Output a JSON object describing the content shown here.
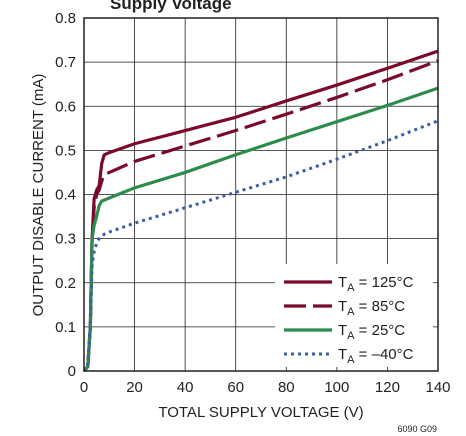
{
  "chart_data": {
    "type": "line",
    "title_fragment": "Supply Voltage",
    "xlabel": "TOTAL SUPPLY VOLTAGE (V)",
    "ylabel": "OUTPUT DISABLE CURRENT (mA)",
    "xlim": [
      0,
      140
    ],
    "ylim": [
      0,
      0.8
    ],
    "x_ticks": [
      "0",
      "20",
      "40",
      "60",
      "80",
      "100",
      "120",
      "140"
    ],
    "y_ticks": [
      "0",
      "0.1",
      "0.2",
      "0.3",
      "0.4",
      "0.5",
      "0.6",
      "0.7",
      "0.8"
    ],
    "grid": true,
    "legend_position": "bottom-right",
    "figure_id": "6090 G09",
    "series": [
      {
        "name_main": "T",
        "name_sub": "A",
        "name_rest": " = 125°C",
        "color": "#7a0a2a",
        "dash": "solid",
        "points": [
          [
            0,
            0
          ],
          [
            1.5,
            0.01
          ],
          [
            2.5,
            0.1
          ],
          [
            3.2,
            0.3
          ],
          [
            4,
            0.39
          ],
          [
            5,
            0.41
          ],
          [
            6,
            0.42
          ],
          [
            7,
            0.47
          ],
          [
            8,
            0.49
          ],
          [
            10,
            0.495
          ],
          [
            20,
            0.515
          ],
          [
            40,
            0.545
          ],
          [
            60,
            0.575
          ],
          [
            80,
            0.612
          ],
          [
            100,
            0.648
          ],
          [
            120,
            0.686
          ],
          [
            140,
            0.725
          ]
        ]
      },
      {
        "name_main": "T",
        "name_sub": "A",
        "name_rest": " = 85°C",
        "color": "#7a0a2a",
        "dash": "long",
        "points": [
          [
            0,
            0
          ],
          [
            1.5,
            0.01
          ],
          [
            2.5,
            0.1
          ],
          [
            3.2,
            0.3
          ],
          [
            4,
            0.37
          ],
          [
            5,
            0.4
          ],
          [
            6,
            0.41
          ],
          [
            7,
            0.43
          ],
          [
            8,
            0.445
          ],
          [
            10,
            0.45
          ],
          [
            20,
            0.475
          ],
          [
            40,
            0.51
          ],
          [
            60,
            0.545
          ],
          [
            80,
            0.582
          ],
          [
            100,
            0.62
          ],
          [
            120,
            0.66
          ],
          [
            140,
            0.703
          ]
        ]
      },
      {
        "name_main": "T",
        "name_sub": "A",
        "name_rest": " = 25°C",
        "color": "#2e8b4e",
        "dash": "solid",
        "points": [
          [
            0,
            0
          ],
          [
            1.5,
            0.01
          ],
          [
            2.5,
            0.1
          ],
          [
            3.2,
            0.3
          ],
          [
            4,
            0.33
          ],
          [
            5,
            0.35
          ],
          [
            6,
            0.375
          ],
          [
            7,
            0.385
          ],
          [
            10,
            0.392
          ],
          [
            20,
            0.415
          ],
          [
            40,
            0.45
          ],
          [
            60,
            0.49
          ],
          [
            80,
            0.528
          ],
          [
            100,
            0.565
          ],
          [
            120,
            0.602
          ],
          [
            140,
            0.641
          ]
        ]
      },
      {
        "name_main": "T",
        "name_sub": "A",
        "name_rest": " = –40°C",
        "color": "#3a5cac",
        "dash": "dotted",
        "points": [
          [
            0,
            0
          ],
          [
            1.5,
            0.01
          ],
          [
            2.5,
            0.1
          ],
          [
            3.2,
            0.24
          ],
          [
            4,
            0.27
          ],
          [
            5,
            0.29
          ],
          [
            6,
            0.3
          ],
          [
            8,
            0.31
          ],
          [
            10,
            0.315
          ],
          [
            20,
            0.335
          ],
          [
            40,
            0.37
          ],
          [
            60,
            0.405
          ],
          [
            80,
            0.44
          ],
          [
            100,
            0.48
          ],
          [
            120,
            0.522
          ],
          [
            140,
            0.567
          ]
        ]
      }
    ]
  }
}
